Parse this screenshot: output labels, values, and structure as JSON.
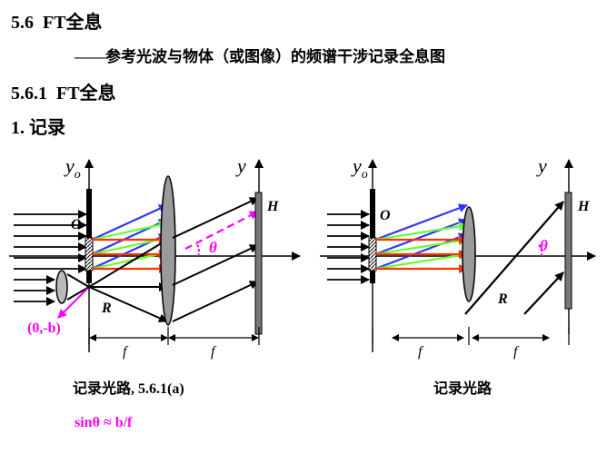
{
  "heading": {
    "section": "5.6",
    "title": "FT全息",
    "subtitle": "——参考光波与物体（或图像）的频谱干涉记录全息图",
    "subsection_number": "5.6.1",
    "subsection_title": "FT全息",
    "item": "1. 记录"
  },
  "left_diagram": {
    "axis_yo": "y",
    "axis_yo_sub": "o",
    "axis_y": "y",
    "object_label": "O",
    "reference_label": "R",
    "hologram_label": "H",
    "angle_label": "θ",
    "point_label": "(0,-b)",
    "focal_left": "f",
    "focal_right": "f",
    "caption": "记录光路, 5.6.1(a)"
  },
  "right_diagram": {
    "axis_yo": "y",
    "axis_yo_sub": "o",
    "axis_y": "y",
    "object_label": "O",
    "reference_label": "R",
    "hologram_label": "H",
    "angle_label": "θ",
    "focal_left": "f",
    "focal_right": "f",
    "caption": "记录光路"
  },
  "formula": "sinθ ≈ b/f",
  "colors": {
    "ray_blue": "#3333ff",
    "ray_green": "#66ff33",
    "ray_red": "#ff3300",
    "accent_magenta": "#ff00ff",
    "lens_gray": "#9a9a9a",
    "screen_gray": "#777777"
  }
}
